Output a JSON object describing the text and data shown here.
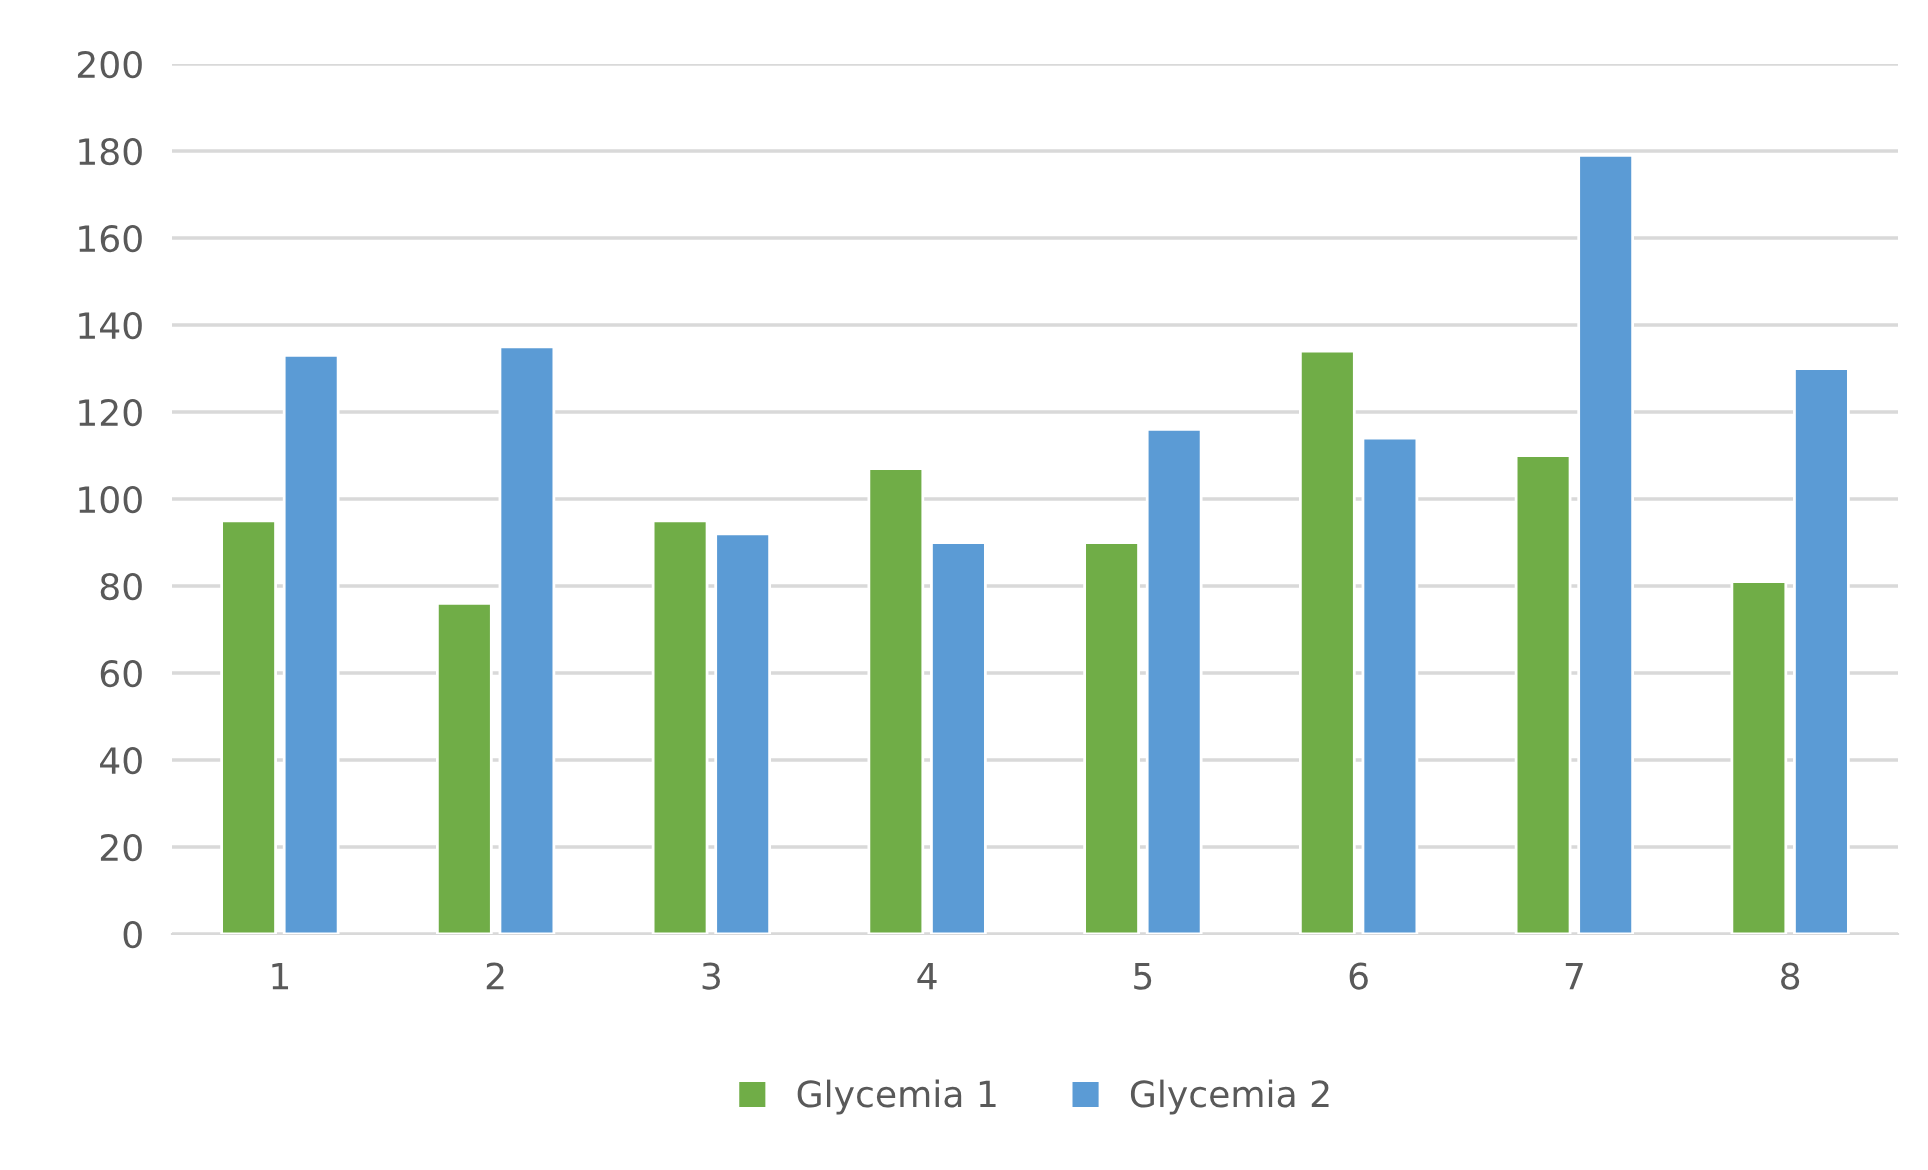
{
  "chart_data": {
    "type": "bar",
    "categories": [
      "1",
      "2",
      "3",
      "4",
      "5",
      "6",
      "7",
      "8"
    ],
    "series": [
      {
        "name": "Glycemia 1",
        "color": "#70ad47",
        "values": [
          95,
          76,
          95,
          107,
          90,
          134,
          110,
          81
        ]
      },
      {
        "name": "Glycemia 2",
        "color": "#5b9bd5",
        "values": [
          133,
          135,
          92,
          90,
          116,
          114,
          179,
          130
        ]
      }
    ],
    "ylim": [
      0,
      200
    ],
    "yticks": [
      0,
      20,
      40,
      60,
      80,
      100,
      120,
      140,
      160,
      180,
      200
    ],
    "grid": "y",
    "legend": "bottom"
  }
}
